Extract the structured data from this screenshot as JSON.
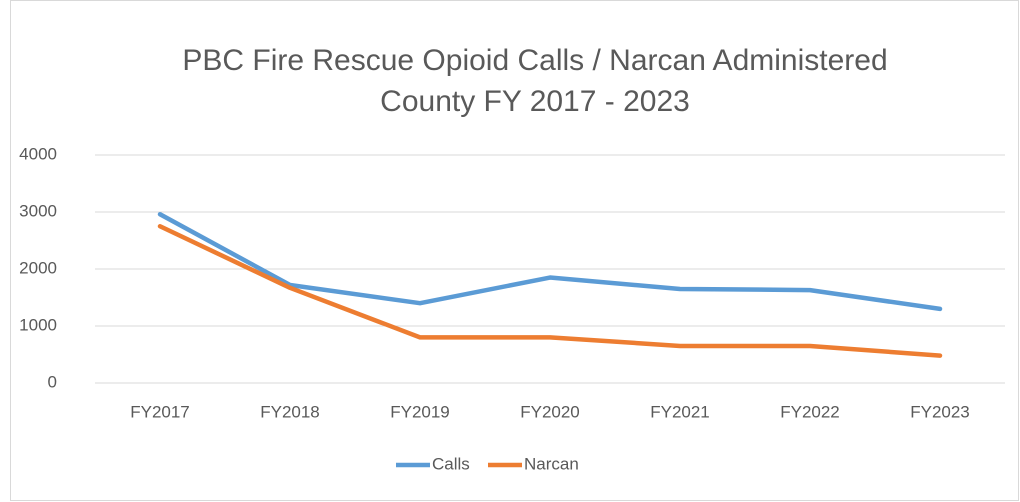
{
  "chart_data": {
    "type": "line",
    "title": [
      "PBC Fire Rescue Opioid Calls / Narcan Administered",
      "County FY 2017 - 2023"
    ],
    "categories": [
      "FY2017",
      "FY2018",
      "FY2019",
      "FY2020",
      "FY2021",
      "FY2022",
      "FY2023"
    ],
    "series": [
      {
        "name": "Calls",
        "color": "#5b9bd5",
        "values": [
          2960,
          1720,
          1400,
          1850,
          1650,
          1630,
          1300
        ]
      },
      {
        "name": "Narcan",
        "color": "#ed7d31",
        "values": [
          2750,
          1670,
          800,
          800,
          650,
          650,
          480
        ]
      }
    ],
    "ylim": [
      0,
      4000
    ],
    "yticks": [
      0,
      1000,
      2000,
      3000,
      4000
    ],
    "grid": true,
    "legend": "bottom"
  }
}
